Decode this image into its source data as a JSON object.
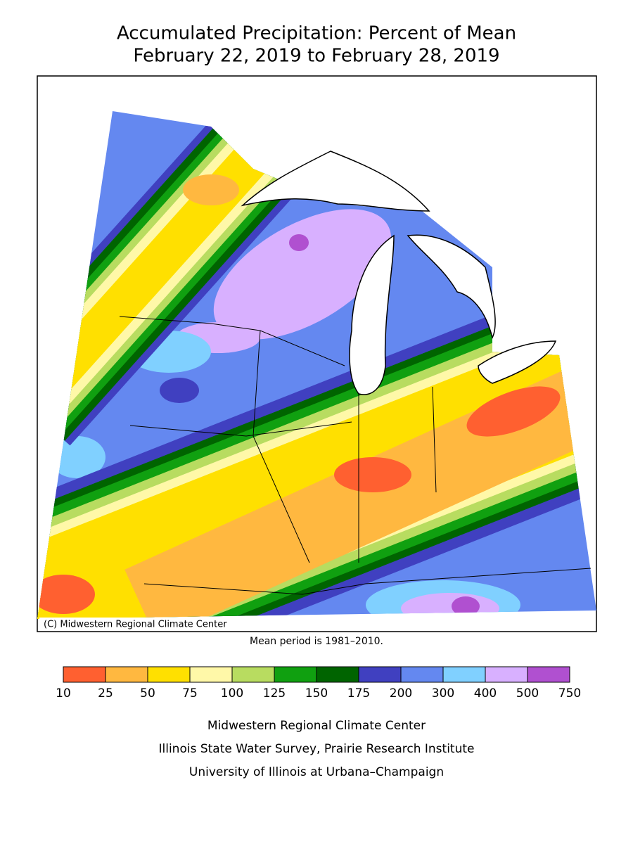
{
  "title": [
    "Accumulated Precipitation: Percent of Mean",
    "February 22, 2019 to February 28, 2019"
  ],
  "map": {
    "copyright": "(C) Midwestern Regional Climate Center"
  },
  "note": "Mean period is 1981–2010.",
  "legend": {
    "ticks": [
      10,
      25,
      50,
      75,
      100,
      125,
      150,
      175,
      200,
      300,
      400,
      500,
      750
    ],
    "colors": [
      "#ff6030",
      "#ffb840",
      "#ffe000",
      "#fff8a8",
      "#b8dc60",
      "#10a010",
      "#006400",
      "#4040c0",
      "#6488f0",
      "#80d0ff",
      "#d8b0ff",
      "#b050d0"
    ]
  },
  "credits": [
    "Midwestern Regional Climate Center",
    "Illinois State Water Survey, Prairie Research Institute",
    "University of Illinois at Urbana–Champaign"
  ]
}
